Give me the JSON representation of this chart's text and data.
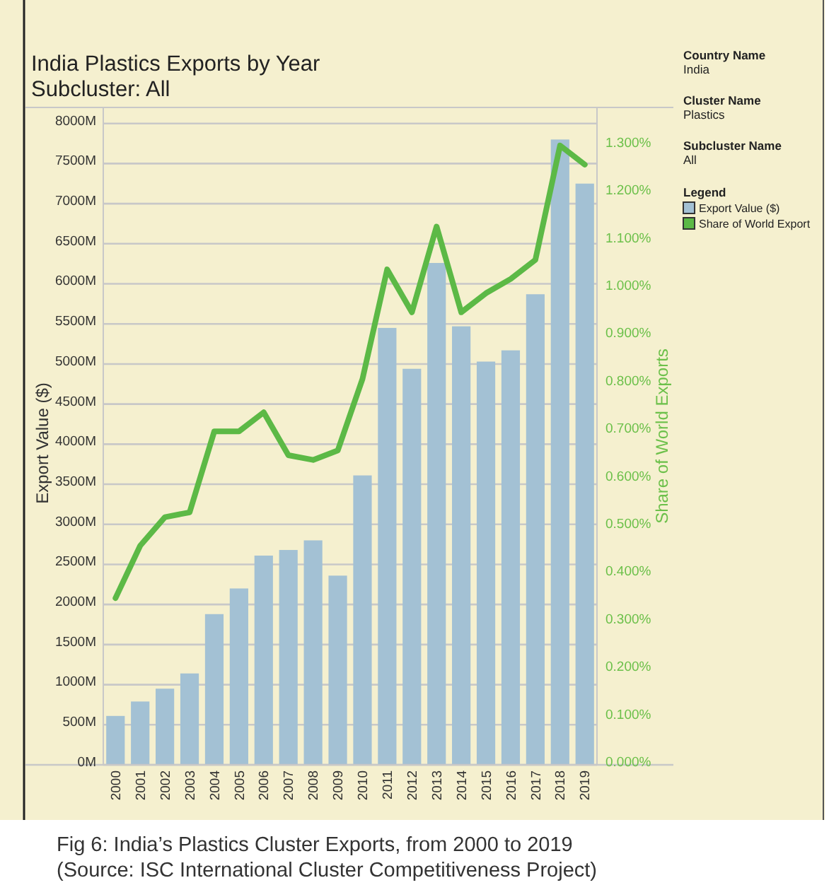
{
  "chart_data": {
    "type": "bar",
    "title": "India Plastics Exports by Year",
    "subtitle": "Subcluster: All",
    "ylabel": "Export Value ($)",
    "y2label": "Share of World Exports",
    "legend_title": "Legend",
    "legend": "right",
    "grid": "y",
    "annotations": [
      "Country Name",
      "India",
      "Cluster Name",
      "Plastics",
      "Subcluster Name",
      "All",
      "Fig 6: India’s Plastics Cluster Exports, from 2000 to 2019",
      "(Source: ISC International Cluster Competitiveness Project)"
    ],
    "categories": [
      "2000",
      "2001",
      "2002",
      "2003",
      "2004",
      "2005",
      "2006",
      "2007",
      "2008",
      "2009",
      "2010",
      "2011",
      "2012",
      "2013",
      "2014",
      "2015",
      "2016",
      "2017",
      "2018",
      "2019"
    ],
    "series": [
      {
        "name": "Export Value ($)",
        "color": "#a3c1d4",
        "values": [
          610,
          790,
          950,
          1140,
          1880,
          2200,
          2610,
          2680,
          2800,
          2360,
          3610,
          5450,
          4940,
          6260,
          5470,
          5030,
          5170,
          5870,
          7800,
          7250
        ]
      },
      {
        "name": "Share of World Export",
        "type": "line",
        "axis": "y2",
        "color": "#5cb946",
        "values": [
          0.35,
          0.46,
          0.52,
          0.53,
          0.7,
          0.7,
          0.74,
          0.65,
          0.64,
          0.66,
          0.81,
          1.04,
          0.95,
          1.13,
          0.95,
          0.99,
          1.02,
          1.06,
          1.3,
          1.26
        ]
      }
    ],
    "ylim": [
      0,
      8200
    ],
    "yticks": [
      {
        "value": 0,
        "label": "0M"
      },
      {
        "value": 500,
        "label": "500M"
      },
      {
        "value": 1000,
        "label": "1000M"
      },
      {
        "value": 1500,
        "label": "1500M"
      },
      {
        "value": 2000,
        "label": "2000M"
      },
      {
        "value": 2500,
        "label": "2500M"
      },
      {
        "value": 3000,
        "label": "3000M"
      },
      {
        "value": 3500,
        "label": "3500M"
      },
      {
        "value": 4000,
        "label": "4000M"
      },
      {
        "value": 4500,
        "label": "4500M"
      },
      {
        "value": 5000,
        "label": "5000M"
      },
      {
        "value": 5500,
        "label": "5500M"
      },
      {
        "value": 6000,
        "label": "6000M"
      },
      {
        "value": 6500,
        "label": "6500M"
      },
      {
        "value": 7000,
        "label": "7000M"
      },
      {
        "value": 7500,
        "label": "7500M"
      },
      {
        "value": 8000,
        "label": "8000M"
      }
    ],
    "y2lim": [
      0,
      1.38
    ],
    "y2ticks": [
      {
        "value": 0,
        "label": "0.000%"
      },
      {
        "value": 0.1,
        "label": "0.100%"
      },
      {
        "value": 0.2,
        "label": "0.200%"
      },
      {
        "value": 0.3,
        "label": "0.300%"
      },
      {
        "value": 0.4,
        "label": "0.400%"
      },
      {
        "value": 0.5,
        "label": "0.500%"
      },
      {
        "value": 0.6,
        "label": "0.600%"
      },
      {
        "value": 0.7,
        "label": "0.700%"
      },
      {
        "value": 0.8,
        "label": "0.800%"
      },
      {
        "value": 0.9,
        "label": "0.900%"
      },
      {
        "value": 1.0,
        "label": "1.000%"
      },
      {
        "value": 1.1,
        "label": "1.100%"
      },
      {
        "value": 1.2,
        "label": "1.200%"
      },
      {
        "value": 1.3,
        "label": "1.300%"
      }
    ]
  }
}
